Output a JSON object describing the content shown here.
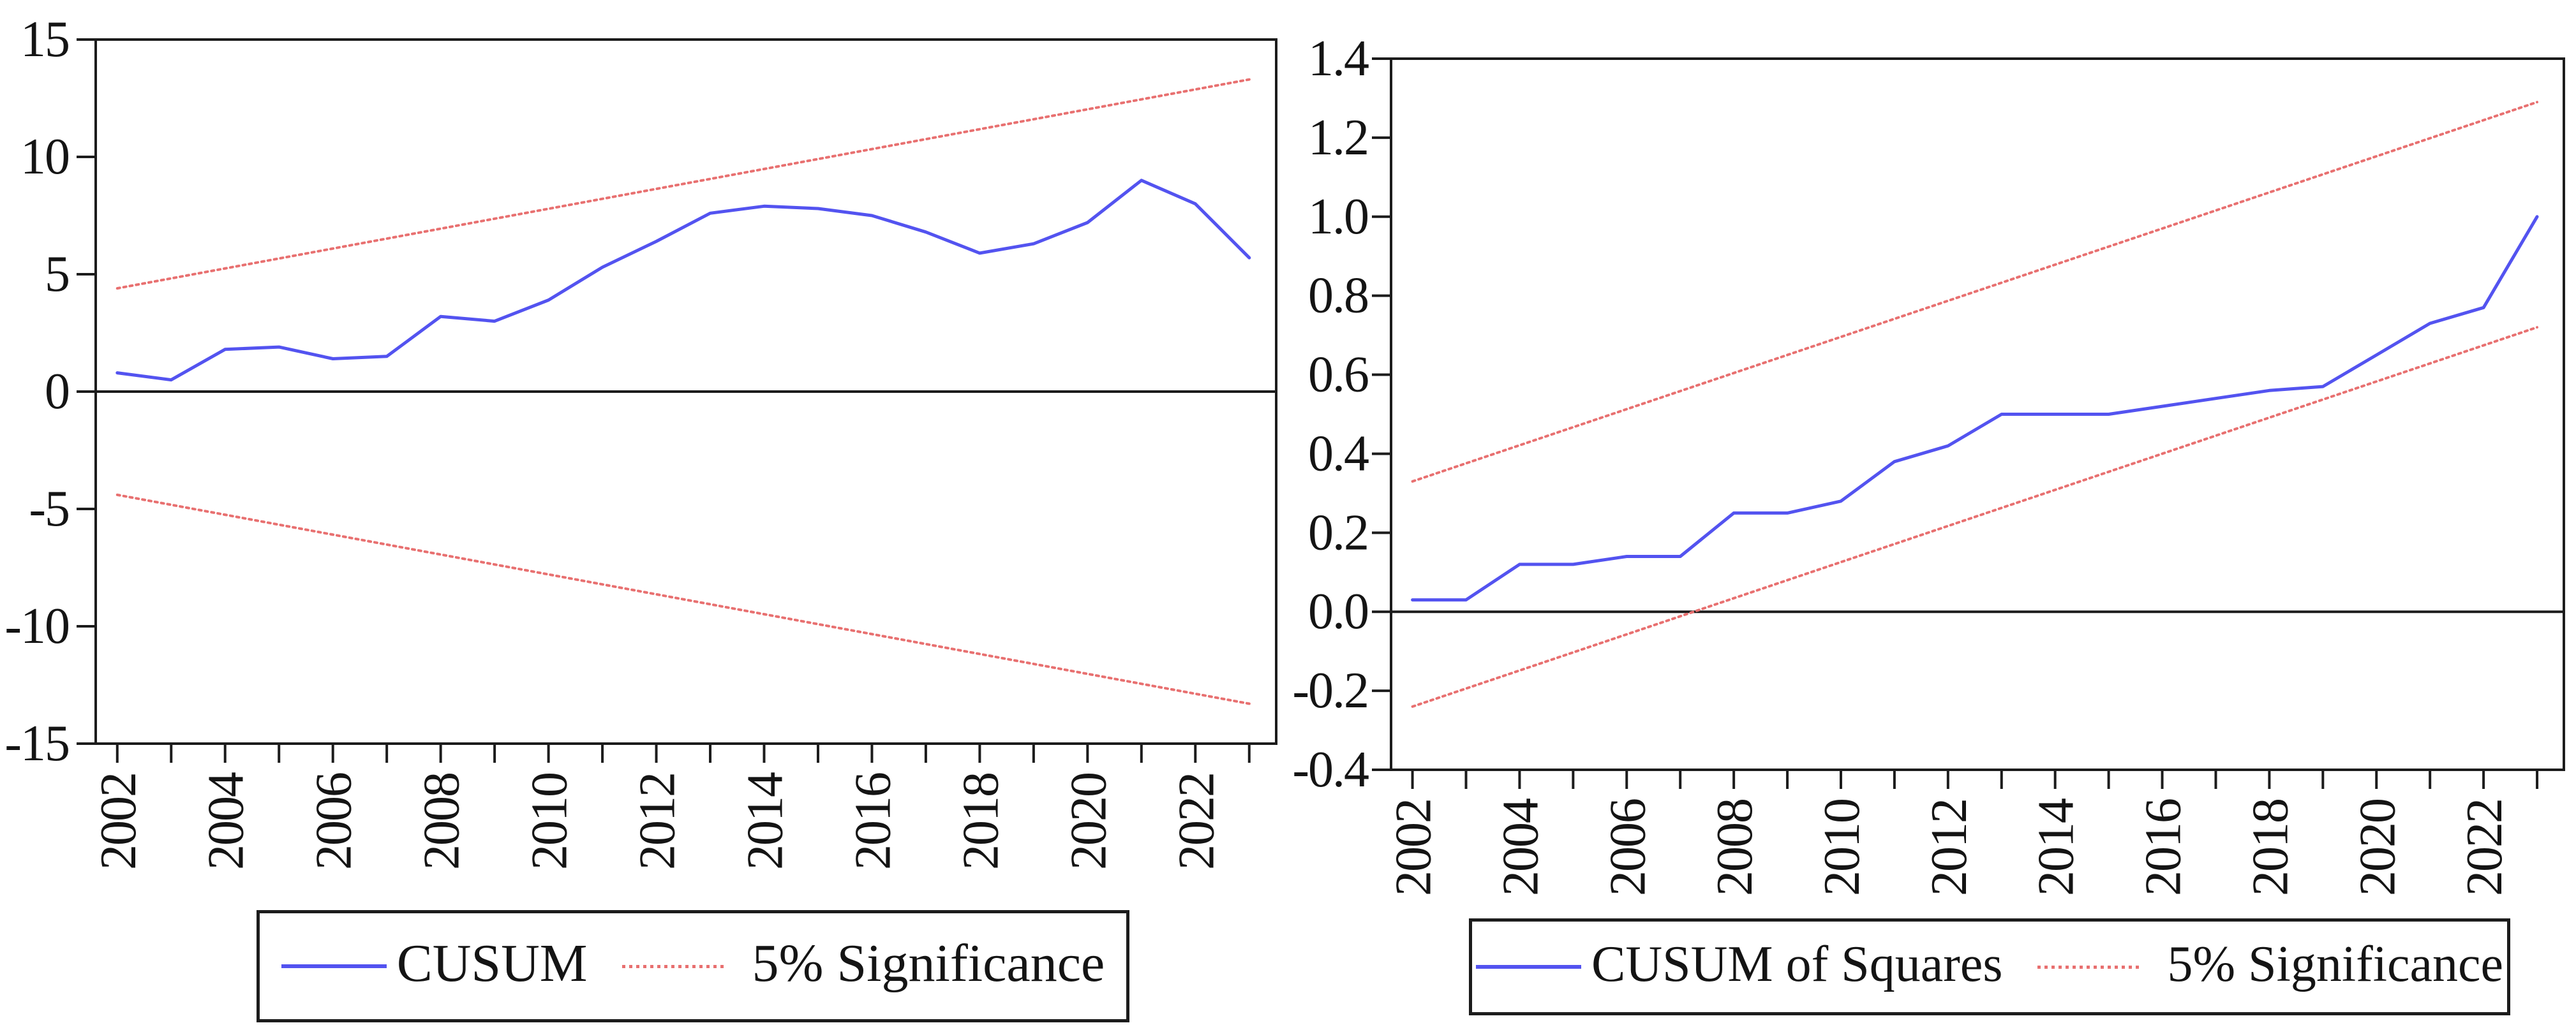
{
  "page": {
    "background": "#ffffff"
  },
  "colors": {
    "cusum_line": "#5353f0",
    "significance_line": "#e87070",
    "axis": "#1c1c1c",
    "label_text": "#141414"
  },
  "legends": [
    {
      "items": [
        {
          "label": "CUSUM",
          "swatch": "blue-solid-line"
        },
        {
          "label": "5% Significance",
          "swatch": "red-dotted-line"
        }
      ]
    },
    {
      "items": [
        {
          "label": "CUSUM of Squares",
          "swatch": "blue-solid-line"
        },
        {
          "label": "5% Significance",
          "swatch": "red-dotted-line"
        }
      ]
    }
  ],
  "chart_data": [
    {
      "type": "line",
      "name": "CUSUM stability test",
      "x": [
        2002,
        2003,
        2004,
        2005,
        2006,
        2007,
        2008,
        2009,
        2010,
        2011,
        2012,
        2013,
        2014,
        2015,
        2016,
        2017,
        2018,
        2019,
        2020,
        2021,
        2022,
        2023
      ],
      "series": [
        {
          "name": "CUSUM",
          "color": "#5353f0",
          "style": "solid",
          "values": [
            0.8,
            0.5,
            1.8,
            1.9,
            1.4,
            1.5,
            3.2,
            3.0,
            3.9,
            5.3,
            6.4,
            7.6,
            7.9,
            7.8,
            7.5,
            6.8,
            5.9,
            6.3,
            7.2,
            9.0,
            8.0,
            5.7
          ]
        },
        {
          "name": "5% Significance upper bound",
          "color": "#e87070",
          "style": "dotted",
          "x": [
            2002,
            2023
          ],
          "values": [
            4.4,
            13.3
          ]
        },
        {
          "name": "5% Significance lower bound",
          "color": "#e87070",
          "style": "dotted",
          "x": [
            2002,
            2023
          ],
          "values": [
            -4.4,
            -13.3
          ]
        }
      ],
      "ylim": [
        -15,
        15
      ],
      "xlim": [
        2001.6,
        2023.5
      ],
      "y_ticks": [
        -15,
        -10,
        -5,
        0,
        5,
        10,
        15
      ],
      "y_tick_labels": [
        "-15",
        "-10",
        "-5",
        "0",
        "5",
        "10",
        "15"
      ],
      "x_ticks": [
        2002,
        2003,
        2004,
        2005,
        2006,
        2007,
        2008,
        2009,
        2010,
        2011,
        2012,
        2013,
        2014,
        2015,
        2016,
        2017,
        2018,
        2019,
        2020,
        2021,
        2022,
        2023
      ],
      "x_tick_labels": [
        "2002",
        "2004",
        "2006",
        "2008",
        "2010",
        "2012",
        "2014",
        "2016",
        "2018",
        "2020",
        "2022"
      ],
      "zero_line": true,
      "grid": false,
      "legend_position": "bottom-center"
    },
    {
      "type": "line",
      "name": "CUSUM of Squares stability test",
      "x": [
        2002,
        2003,
        2004,
        2005,
        2006,
        2007,
        2008,
        2009,
        2010,
        2011,
        2012,
        2013,
        2014,
        2015,
        2016,
        2017,
        2018,
        2019,
        2020,
        2021,
        2022,
        2023
      ],
      "series": [
        {
          "name": "CUSUM of Squares",
          "color": "#5353f0",
          "style": "solid",
          "values": [
            0.03,
            0.03,
            0.12,
            0.12,
            0.14,
            0.14,
            0.25,
            0.25,
            0.28,
            0.38,
            0.42,
            0.5,
            0.5,
            0.5,
            0.52,
            0.54,
            0.56,
            0.57,
            0.65,
            0.73,
            0.77,
            1.0
          ]
        },
        {
          "name": "5% Significance upper bound",
          "color": "#e87070",
          "style": "dotted",
          "x": [
            2002,
            2023
          ],
          "values": [
            0.33,
            1.29
          ]
        },
        {
          "name": "5% Significance lower bound",
          "color": "#e87070",
          "style": "dotted",
          "x": [
            2002,
            2023
          ],
          "values": [
            -0.24,
            0.72
          ]
        }
      ],
      "ylim": [
        -0.4,
        1.4
      ],
      "xlim": [
        2001.6,
        2023.5
      ],
      "y_ticks": [
        -0.4,
        -0.2,
        0.0,
        0.2,
        0.4,
        0.6,
        0.8,
        1.0,
        1.2,
        1.4
      ],
      "y_tick_labels": [
        "-0.4",
        "-0.2",
        "0.0",
        "0.2",
        "0.4",
        "0.6",
        "0.8",
        "1.0",
        "1.2",
        "1.4"
      ],
      "x_ticks": [
        2002,
        2003,
        2004,
        2005,
        2006,
        2007,
        2008,
        2009,
        2010,
        2011,
        2012,
        2013,
        2014,
        2015,
        2016,
        2017,
        2018,
        2019,
        2020,
        2021,
        2022,
        2023
      ],
      "x_tick_labels": [
        "2002",
        "2004",
        "2006",
        "2008",
        "2010",
        "2012",
        "2014",
        "2016",
        "2018",
        "2020",
        "2022"
      ],
      "zero_line": true,
      "grid": false,
      "legend_position": "bottom-center"
    }
  ]
}
